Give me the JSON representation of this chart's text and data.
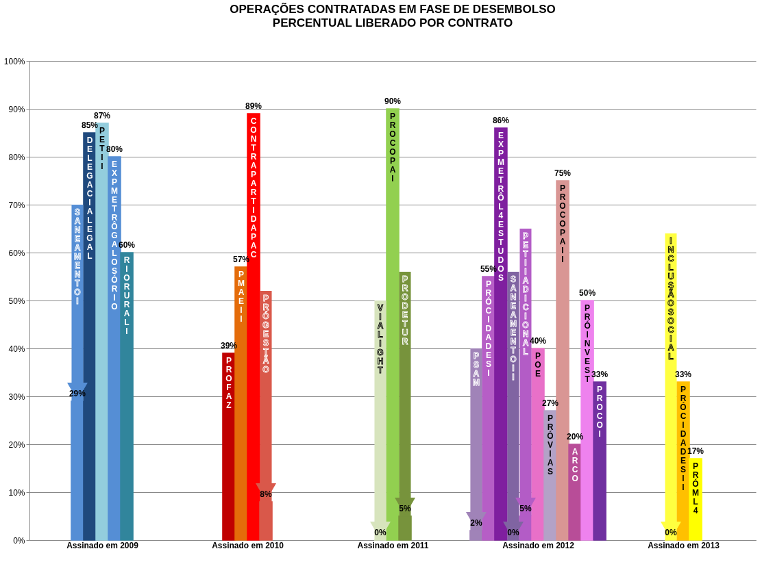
{
  "chart_data": {
    "type": "bar",
    "title": "OPERAÇÕES CONTRATADAS EM FASE DE DESEMBOLSO",
    "subtitle": "PERCENTUAL LIBERADO POR CONTRATO",
    "categories": [
      "Assinado em 2009",
      "Assinado em 2010",
      "Assinado em 2011",
      "Assinado em 2012",
      "Assinado em 2013"
    ],
    "ylim": [
      0,
      100
    ],
    "yticks": [
      {
        "value": 0,
        "label": "0%"
      },
      {
        "value": 10,
        "label": "10%"
      },
      {
        "value": 20,
        "label": "20%"
      },
      {
        "value": 30,
        "label": "30%"
      },
      {
        "value": 40,
        "label": "40%"
      },
      {
        "value": 50,
        "label": "50%"
      },
      {
        "value": 60,
        "label": "60%"
      },
      {
        "value": 70,
        "label": "70%"
      },
      {
        "value": 80,
        "label": "80%"
      },
      {
        "value": 90,
        "label": "90%"
      },
      {
        "value": 100,
        "label": "100%"
      }
    ],
    "grid": "y",
    "legend": false,
    "series": [
      {
        "name": "SANEAMENTO I",
        "color": "#558ed5",
        "values": [
          29,
          null,
          null,
          null,
          null
        ],
        "errors": [
          [
            29,
            70
          ],
          null,
          null,
          null,
          null
        ],
        "value_labels": [
          "29%",
          null,
          null,
          null,
          null
        ]
      },
      {
        "name": "DELEGACIA LEGAL",
        "color": "#1f497d",
        "values": [
          85,
          null,
          null,
          null,
          null
        ],
        "value_labels": [
          "85%",
          null,
          null,
          null,
          null
        ]
      },
      {
        "name": "PET II",
        "color": "#93cddd",
        "values": [
          87,
          null,
          null,
          null,
          null
        ],
        "value_labels": [
          "87%",
          null,
          null,
          null,
          null
        ]
      },
      {
        "name": "EXP METRÔ GAL OSÓRIO",
        "color": "#558ed5",
        "values": [
          80,
          null,
          null,
          null,
          null
        ],
        "value_labels": [
          "80%",
          null,
          null,
          null,
          null
        ]
      },
      {
        "name": "RIO RURAL I",
        "color": "#31859c",
        "values": [
          60,
          null,
          null,
          null,
          null
        ],
        "value_labels": [
          "60%",
          null,
          null,
          null,
          null
        ]
      },
      {
        "name": "PROFAZ",
        "color": "#c00000",
        "values": [
          null,
          39,
          null,
          null,
          null
        ],
        "value_labels": [
          null,
          "39%",
          null,
          null,
          null
        ]
      },
      {
        "name": "PMAE II",
        "color": "#e46c0a",
        "values": [
          null,
          57,
          null,
          null,
          null
        ],
        "value_labels": [
          null,
          "57%",
          null,
          null,
          null
        ]
      },
      {
        "name": "CONTRAPARTIDA PAC",
        "color": "#ff0000",
        "values": [
          null,
          89,
          null,
          null,
          null
        ],
        "value_labels": [
          null,
          "89%",
          null,
          null,
          null
        ]
      },
      {
        "name": "PRÓ GESTÃO",
        "color": "#d9584a",
        "values": [
          null,
          8,
          null,
          null,
          null
        ],
        "errors": [
          null,
          [
            8,
            52
          ],
          null,
          null,
          null
        ],
        "value_labels": [
          null,
          "8%",
          null,
          null,
          null
        ]
      },
      {
        "name": "VIA LIGHT",
        "color": "#d7e4bd",
        "values": [
          null,
          null,
          0,
          null,
          null
        ],
        "errors": [
          null,
          null,
          [
            0,
            50
          ],
          null,
          null
        ],
        "value_labels": [
          null,
          null,
          "0%",
          null,
          null
        ]
      },
      {
        "name": "PROCOPA I",
        "color": "#92d050",
        "values": [
          null,
          null,
          90,
          null,
          null
        ],
        "value_labels": [
          null,
          null,
          "90%",
          null,
          null
        ]
      },
      {
        "name": "PRODETUR",
        "color": "#77933c",
        "values": [
          null,
          null,
          5,
          null,
          null
        ],
        "errors": [
          null,
          null,
          [
            5,
            56
          ],
          null,
          null
        ],
        "value_labels": [
          null,
          null,
          "5%",
          null,
          null
        ]
      },
      {
        "name": "PSAM",
        "color": "#a083b8",
        "values": [
          null,
          null,
          null,
          2,
          null
        ],
        "errors": [
          null,
          null,
          null,
          [
            2,
            40
          ],
          null
        ],
        "value_labels": [
          null,
          null,
          null,
          "2%",
          null
        ]
      },
      {
        "name": "PRÓ CIDADES I",
        "color": "#b65ec6",
        "values": [
          null,
          null,
          null,
          55,
          null
        ],
        "value_labels": [
          null,
          null,
          null,
          "55%",
          null
        ]
      },
      {
        "name": "EXP METRÔ L4 ESTUDOS",
        "color": "#7f1f9f",
        "values": [
          null,
          null,
          null,
          86,
          null
        ],
        "value_labels": [
          null,
          null,
          null,
          "86%",
          null
        ]
      },
      {
        "name": "SANEAMENTO II",
        "color": "#8064a2",
        "values": [
          null,
          null,
          null,
          0,
          null
        ],
        "errors": [
          null,
          null,
          null,
          [
            0,
            56
          ],
          null
        ],
        "value_labels": [
          null,
          null,
          null,
          "0%",
          null
        ]
      },
      {
        "name": "PET II ADICIONAL",
        "color": "#b35cc6",
        "values": [
          null,
          null,
          null,
          5,
          null
        ],
        "errors": [
          null,
          null,
          null,
          [
            5,
            65
          ],
          null
        ],
        "value_labels": [
          null,
          null,
          null,
          "5%",
          null
        ]
      },
      {
        "name": "POE",
        "color": "#e870c8",
        "values": [
          null,
          null,
          null,
          40,
          null
        ],
        "value_labels": [
          null,
          null,
          null,
          "40%",
          null
        ]
      },
      {
        "name": "PRÓVIAS",
        "color": "#b3a2c7",
        "values": [
          null,
          null,
          null,
          27,
          null
        ],
        "value_labels": [
          null,
          null,
          null,
          "27%",
          null
        ]
      },
      {
        "name": "PROCOPA II",
        "color": "#d99694",
        "values": [
          null,
          null,
          null,
          75,
          null
        ],
        "value_labels": [
          null,
          null,
          null,
          "75%",
          null
        ]
      },
      {
        "name": "ARCO",
        "color": "#b84d98",
        "values": [
          null,
          null,
          null,
          20,
          null
        ],
        "value_labels": [
          null,
          null,
          null,
          "20%",
          null
        ]
      },
      {
        "name": "PRÓ INVEST",
        "color": "#ee82ee",
        "values": [
          null,
          null,
          null,
          50,
          null
        ],
        "value_labels": [
          null,
          null,
          null,
          "50%",
          null
        ]
      },
      {
        "name": "PROCO I",
        "color": "#7030a0",
        "values": [
          null,
          null,
          null,
          33,
          null
        ],
        "value_labels": [
          null,
          null,
          null,
          "33%",
          null
        ]
      },
      {
        "name": "INCLUSÃO SOCIAL",
        "color": "#ffff40",
        "values": [
          null,
          null,
          null,
          null,
          0
        ],
        "errors": [
          null,
          null,
          null,
          null,
          [
            0,
            64
          ]
        ],
        "value_labels": [
          null,
          null,
          null,
          null,
          "0%"
        ]
      },
      {
        "name": "PRÓCIDADES II",
        "color": "#ffc000",
        "values": [
          null,
          null,
          null,
          null,
          33
        ],
        "value_labels": [
          null,
          null,
          null,
          null,
          "33%"
        ]
      },
      {
        "name": "PRÓ ML4",
        "color": "#ffff00",
        "values": [
          null,
          null,
          null,
          null,
          17
        ],
        "value_labels": [
          null,
          null,
          null,
          null,
          "17%"
        ]
      }
    ]
  }
}
